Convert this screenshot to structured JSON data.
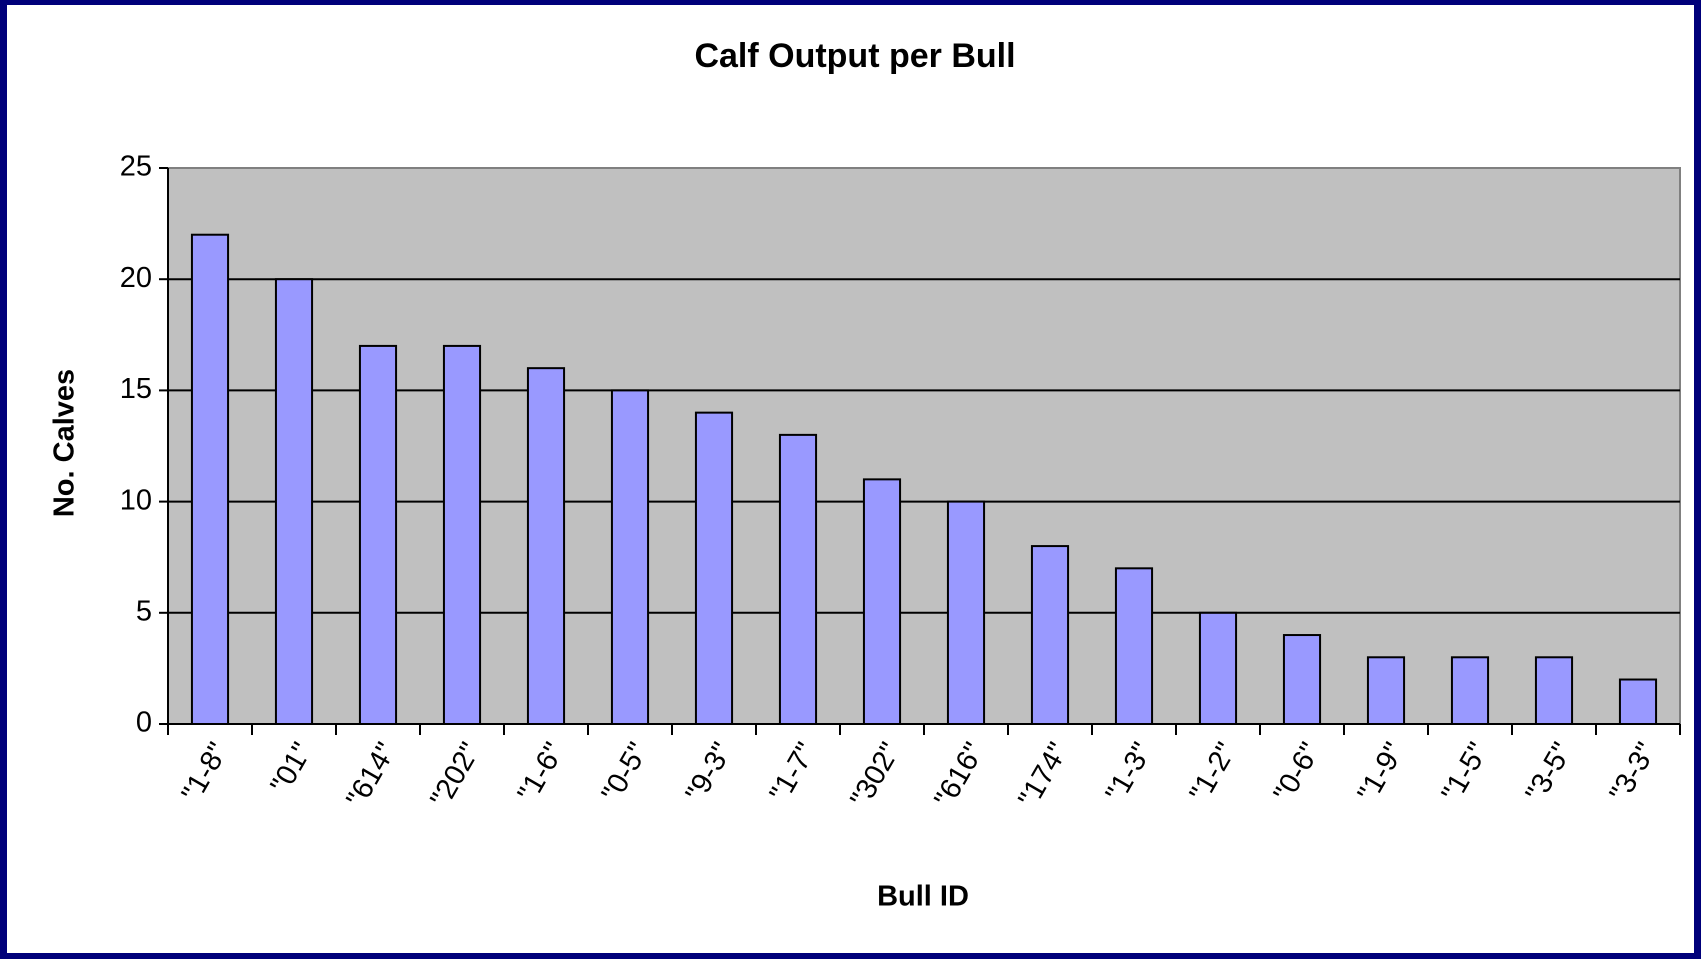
{
  "chart_data": {
    "type": "bar",
    "title": "Calf Output per Bull",
    "x_label": "Bull ID",
    "y_label": "No. Calves",
    "categories": [
      "\"1-8\"",
      "\"01\"",
      "\"614\"",
      "\"202\"",
      "\"1-6\"",
      "\"0-5\"",
      "\"9-3\"",
      "\"1-7\"",
      "\"302\"",
      "\"616\"",
      "\"174\"",
      "\"1-3\"",
      "\"1-2\"",
      "\"0-6\"",
      "\"1-9\"",
      "\"1-5\"",
      "\"3-5\"",
      "\"3-3\""
    ],
    "values": [
      22,
      20,
      17,
      17,
      16,
      15,
      14,
      13,
      11,
      10,
      8,
      7,
      5,
      4,
      3,
      3,
      3,
      2
    ],
    "color": "#9999ff",
    "plot_background": "#c0c0c0",
    "ylim": [
      0,
      25
    ],
    "yticks": [
      0,
      5,
      10,
      15,
      20,
      25
    ],
    "grid": true
  }
}
